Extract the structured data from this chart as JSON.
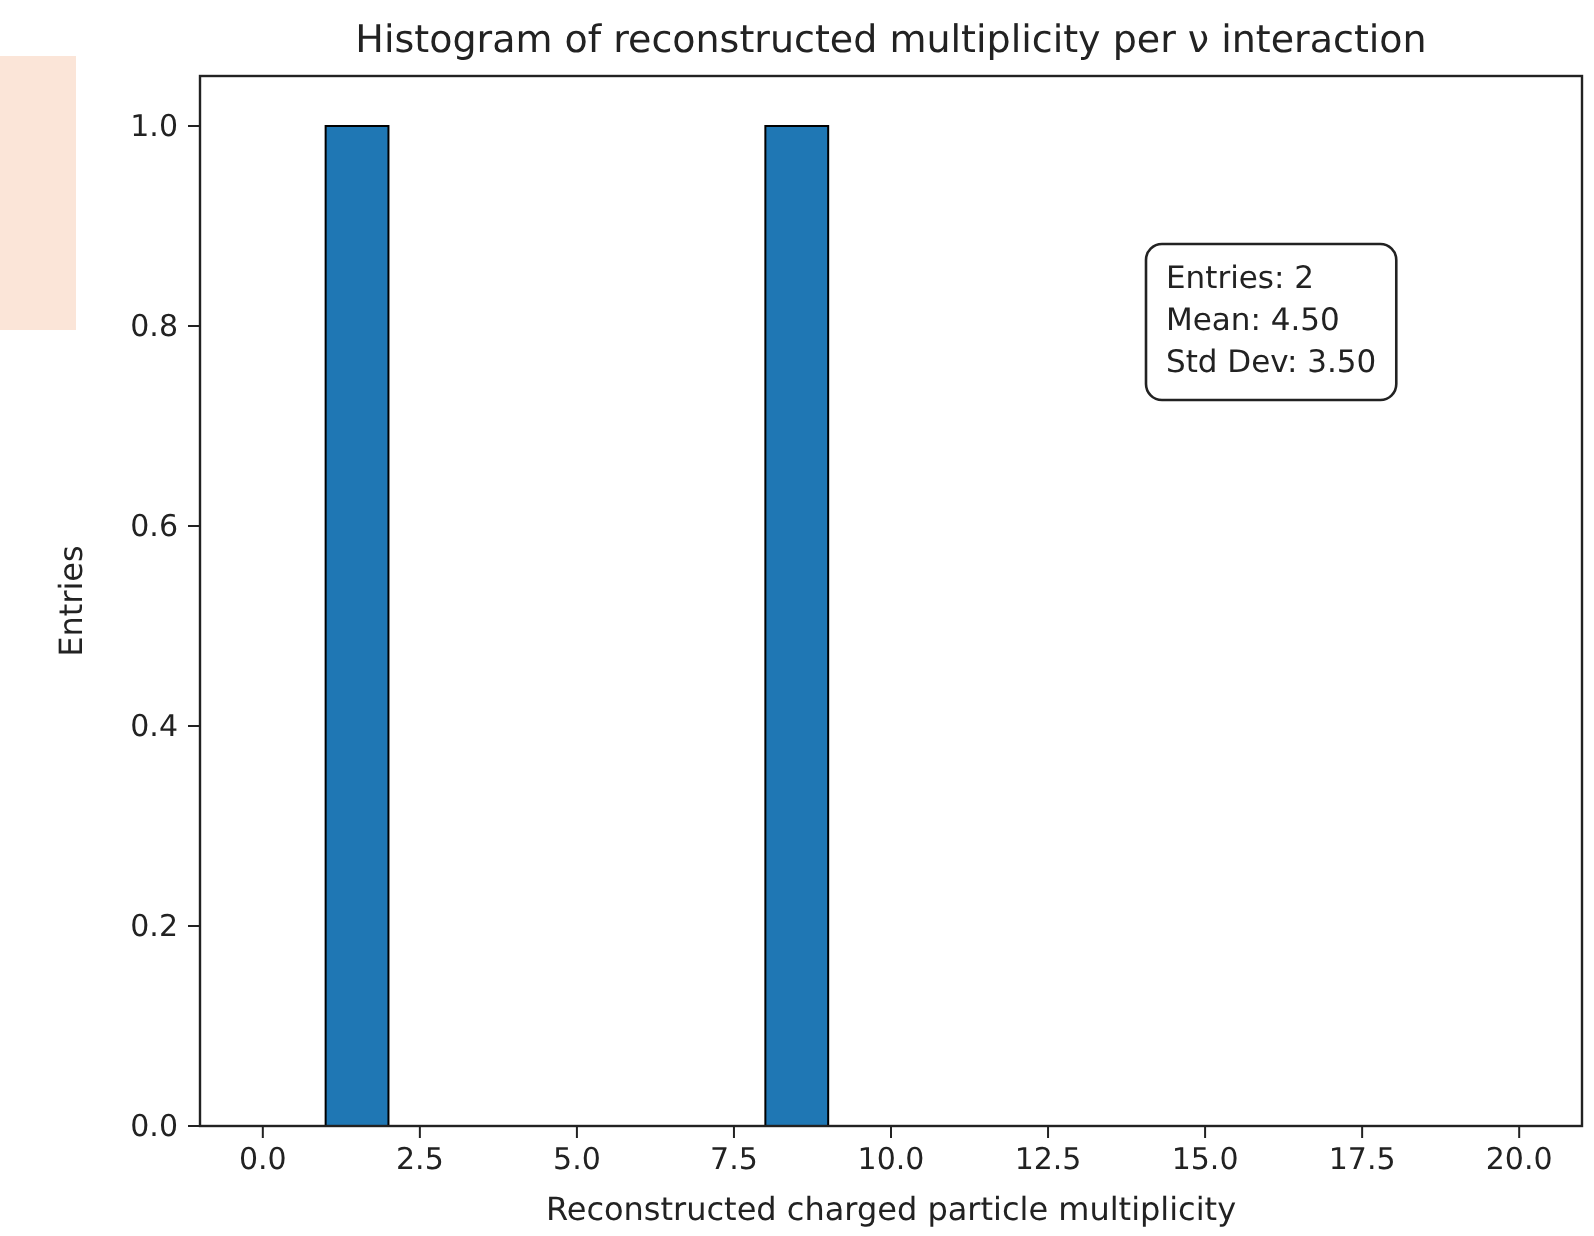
{
  "chart_data": {
    "type": "histogram",
    "title": "Histogram of reconstructed multiplicity per ν interaction",
    "xlabel": "Reconstructed charged particle multiplicity",
    "ylabel": "Entries",
    "bins": [
      0,
      1,
      2,
      3,
      4,
      5,
      6,
      7,
      8,
      9,
      10,
      11,
      12,
      13,
      14,
      15,
      16,
      17,
      18,
      19,
      20
    ],
    "values": [
      0,
      1,
      0,
      0,
      0,
      0,
      0,
      0,
      1,
      0,
      0,
      0,
      0,
      0,
      0,
      0,
      0,
      0,
      0,
      0
    ],
    "color": "#1f77b4",
    "xlim": [
      -1,
      21
    ],
    "xticks": [
      {
        "value": 0,
        "label": "0.0"
      },
      {
        "value": 2.5,
        "label": "2.5"
      },
      {
        "value": 5,
        "label": "5.0"
      },
      {
        "value": 7.5,
        "label": "7.5"
      },
      {
        "value": 10,
        "label": "10.0"
      },
      {
        "value": 12.5,
        "label": "12.5"
      },
      {
        "value": 15,
        "label": "15.0"
      },
      {
        "value": 17.5,
        "label": "17.5"
      },
      {
        "value": 20,
        "label": "20.0"
      }
    ],
    "ylim": [
      0,
      1.05
    ],
    "yticks": [
      {
        "value": 0,
        "label": "0.0"
      },
      {
        "value": 0.2,
        "label": "0.2"
      },
      {
        "value": 0.4,
        "label": "0.4"
      },
      {
        "value": 0.6,
        "label": "0.6"
      },
      {
        "value": 0.8,
        "label": "0.8"
      },
      {
        "value": 1,
        "label": "1.0"
      }
    ],
    "annotations": [
      "Entries: 2",
      "Mean: 4.50",
      "Std Dev: 3.50"
    ]
  }
}
